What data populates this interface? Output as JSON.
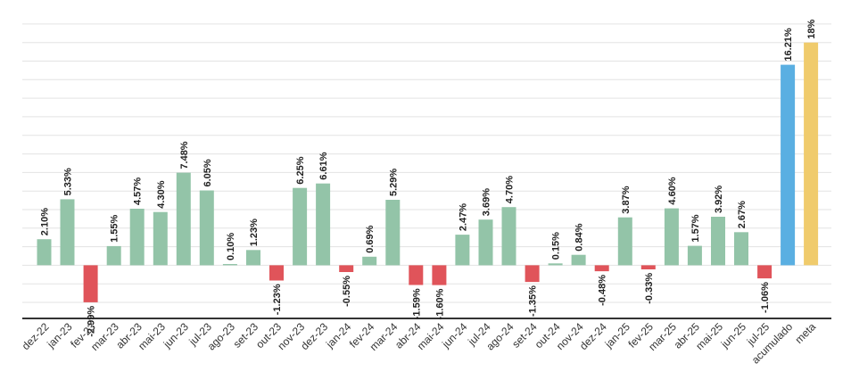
{
  "chart_data": {
    "type": "bar",
    "title": "",
    "xlabel": "",
    "ylabel": "",
    "ylim": [
      -4.3,
      20
    ],
    "grid": true,
    "legend": "none",
    "categories": [
      "dez-22",
      "jan-23",
      "fev-23",
      "mar-23",
      "abr-23",
      "mai-23",
      "jun-23",
      "jul-23",
      "ago-23",
      "set-23",
      "out-23",
      "nov-23",
      "dez-23",
      "jan-24",
      "fev-24",
      "mar-24",
      "abr-24",
      "mai-24",
      "jun-24",
      "jul-24",
      "ago-24",
      "set-24",
      "out-24",
      "nov-24",
      "dez-24",
      "jan-25",
      "fev-25",
      "mar-25",
      "abr-25",
      "mai-25",
      "jun-25",
      "jul-25",
      "acumulado",
      "meta"
    ],
    "values": [
      2.1,
      5.33,
      -2.99,
      1.55,
      4.57,
      4.3,
      7.48,
      6.05,
      0.1,
      1.23,
      -1.23,
      6.25,
      6.61,
      -0.55,
      0.69,
      5.29,
      -1.59,
      -1.6,
      2.47,
      3.69,
      4.7,
      -1.35,
      0.15,
      0.84,
      -0.48,
      3.87,
      -0.33,
      4.6,
      1.57,
      3.92,
      2.67,
      -1.06,
      16.21,
      18.0
    ],
    "labels": [
      "2.10%",
      "5.33%",
      "-2.99%",
      "1.55%",
      "4.57%",
      "4.30%",
      "7.48%",
      "6.05%",
      "0.10%",
      "1.23%",
      "-1.23%",
      "6.25%",
      "6.61%",
      "-0.55%",
      "0.69%",
      "5.29%",
      "-1.59%",
      "-1.60%",
      "2.47%",
      "3.69%",
      "4.70%",
      "-1.35%",
      "0.15%",
      "0.84%",
      "-0.48%",
      "3.87%",
      "-0.33%",
      "4.60%",
      "1.57%",
      "3.92%",
      "2.67%",
      "-1.06%",
      "16.21%",
      "18%"
    ],
    "colors": {
      "positive": "#93c4a8",
      "negative": "#e0545a",
      "acumulado": "#5aafe2",
      "meta": "#f0cb6c",
      "grid": "#e3e3e3",
      "axis": "#333333"
    }
  }
}
